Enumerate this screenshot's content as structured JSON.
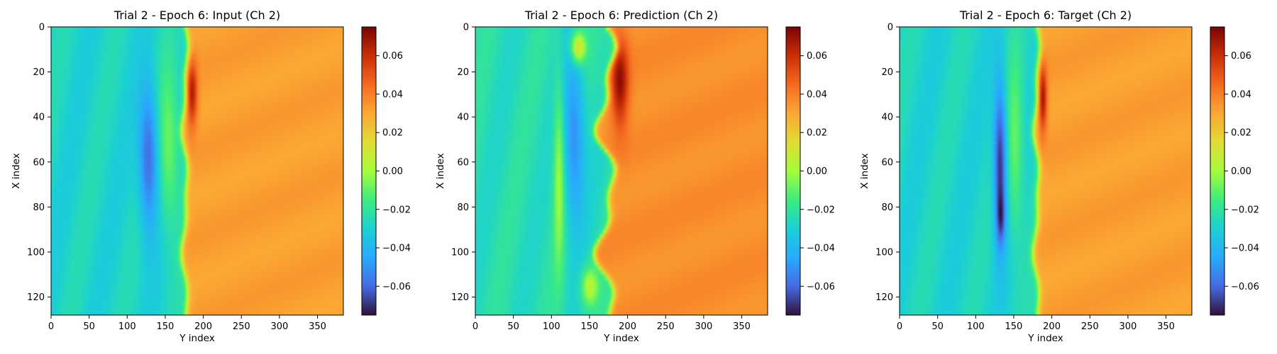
{
  "chart_data": [
    {
      "type": "heatmap",
      "title": "Trial 2 - Epoch 6: Input (Ch 2)",
      "xlabel": "Y index",
      "ylabel": "X index",
      "x_range": [
        0,
        384
      ],
      "y_range": [
        0,
        128
      ],
      "y_inverted": true,
      "x_ticks": [
        "0",
        "50",
        "100",
        "150",
        "200",
        "250",
        "300",
        "350"
      ],
      "y_ticks": [
        "0",
        "20",
        "40",
        "60",
        "80",
        "100",
        "120"
      ],
      "colorbar": {
        "vmin": -0.075,
        "vmax": 0.075,
        "ticks": [
          "−0.06",
          "−0.04",
          "−0.02",
          "0.00",
          "0.02",
          "0.04",
          "0.06"
        ],
        "colormap": "turbo"
      },
      "field": {
        "left_value": -0.028,
        "right_value": 0.032,
        "front_y": 176,
        "front_wobble": 3,
        "features": [
          {
            "cx": 128,
            "cy": 58,
            "sx": 9,
            "sy": 22,
            "amp": -0.035
          },
          {
            "cx": 185,
            "cy": 30,
            "sx": 5,
            "sy": 10,
            "amp": 0.035
          },
          {
            "cx": 155,
            "cy": 55,
            "sx": 10,
            "sy": 25,
            "amp": 0.022
          }
        ]
      }
    },
    {
      "type": "heatmap",
      "title": "Trial 2 - Epoch 6: Prediction (Ch 2)",
      "xlabel": "Y index",
      "ylabel": "X index",
      "x_range": [
        0,
        384
      ],
      "y_range": [
        0,
        128
      ],
      "y_inverted": true,
      "x_ticks": [
        "0",
        "50",
        "100",
        "150",
        "200",
        "250",
        "300",
        "350"
      ],
      "y_ticks": [
        "0",
        "20",
        "40",
        "60",
        "80",
        "100",
        "120"
      ],
      "colorbar": {
        "vmin": -0.075,
        "vmax": 0.075,
        "ticks": [
          "−0.06",
          "−0.04",
          "−0.02",
          "0.00",
          "0.02",
          "0.04",
          "0.06"
        ],
        "colormap": "turbo"
      },
      "field": {
        "left_value": -0.024,
        "right_value": 0.036,
        "front_y": 172,
        "front_wobble": 10,
        "features": [
          {
            "cx": 130,
            "cy": 50,
            "sx": 10,
            "sy": 28,
            "amp": -0.03
          },
          {
            "cx": 135,
            "cy": 9,
            "sx": 7,
            "sy": 5,
            "amp": 0.045
          },
          {
            "cx": 190,
            "cy": 25,
            "sx": 8,
            "sy": 14,
            "amp": 0.035
          },
          {
            "cx": 110,
            "cy": 65,
            "sx": 5,
            "sy": 30,
            "amp": 0.025
          },
          {
            "cx": 150,
            "cy": 115,
            "sx": 8,
            "sy": 6,
            "amp": 0.03
          }
        ]
      }
    },
    {
      "type": "heatmap",
      "title": "Trial 2 - Epoch 6: Target (Ch 2)",
      "xlabel": "Y index",
      "ylabel": "X index",
      "x_range": [
        0,
        384
      ],
      "y_range": [
        0,
        128
      ],
      "y_inverted": true,
      "x_ticks": [
        "0",
        "50",
        "100",
        "150",
        "200",
        "250",
        "300",
        "350"
      ],
      "y_ticks": [
        "0",
        "20",
        "40",
        "60",
        "80",
        "100",
        "120"
      ],
      "colorbar": {
        "vmin": -0.075,
        "vmax": 0.075,
        "ticks": [
          "−0.06",
          "−0.04",
          "−0.02",
          "0.00",
          "0.02",
          "0.04",
          "0.06"
        ],
        "colormap": "turbo"
      },
      "field": {
        "left_value": -0.028,
        "right_value": 0.032,
        "front_y": 180,
        "front_wobble": 3,
        "features": [
          {
            "cx": 132,
            "cy": 60,
            "sx": 6,
            "sy": 25,
            "amp": -0.045
          },
          {
            "cx": 133,
            "cy": 85,
            "sx": 4,
            "sy": 8,
            "amp": -0.02
          },
          {
            "cx": 188,
            "cy": 32,
            "sx": 4,
            "sy": 10,
            "amp": 0.038
          },
          {
            "cx": 152,
            "cy": 55,
            "sx": 8,
            "sy": 28,
            "amp": 0.02
          }
        ]
      }
    }
  ]
}
